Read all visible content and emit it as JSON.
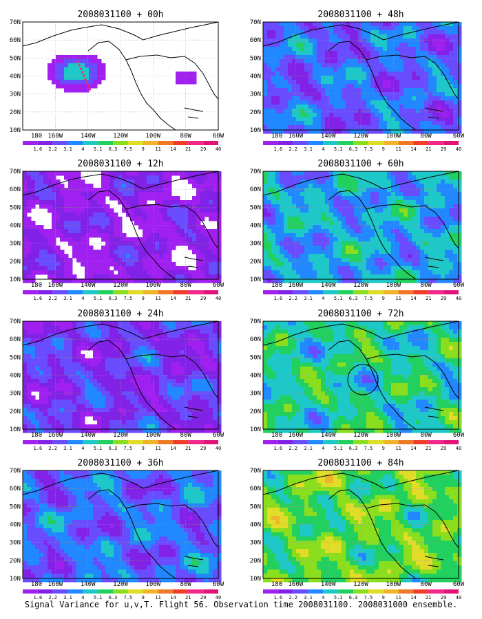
{
  "panels": [
    {
      "title": "2008031100 + 00h",
      "level": 0
    },
    {
      "title": "2008031100 + 48h",
      "level": 3
    },
    {
      "title": "2008031100 + 12h",
      "level": 1
    },
    {
      "title": "2008031100 + 60h",
      "level": 4
    },
    {
      "title": "2008031100 + 24h",
      "level": 2
    },
    {
      "title": "2008031100 + 72h",
      "level": 5
    },
    {
      "title": "2008031100 + 36h",
      "level": 3
    },
    {
      "title": "2008031100 + 84h",
      "level": 6
    }
  ],
  "lat_labels": [
    "70N",
    "60N",
    "50N",
    "40N",
    "30N",
    "20N",
    "10N"
  ],
  "lon_labels": [
    "180",
    "160W",
    "140W",
    "120W",
    "100W",
    "80W",
    "60W"
  ],
  "colorbar": {
    "labels": [
      "1.6",
      "2.2",
      "3.1",
      "4",
      "5.1",
      "6.3",
      "7.5",
      "9",
      "11",
      "14",
      "21",
      "29",
      "40"
    ],
    "colors": [
      "#f0f0f0",
      "#a020f0",
      "#8222e6",
      "#6a4cff",
      "#2288ff",
      "#1ec8c8",
      "#22d060",
      "#8ade1e",
      "#e0dc28",
      "#f0b428",
      "#f07828",
      "#f03c28",
      "#f0288c",
      "#e01478"
    ]
  },
  "footer": "Signal Variance for u,v,T. Flight 56. Observation time 2008031100. 2008031000 ensemble."
}
